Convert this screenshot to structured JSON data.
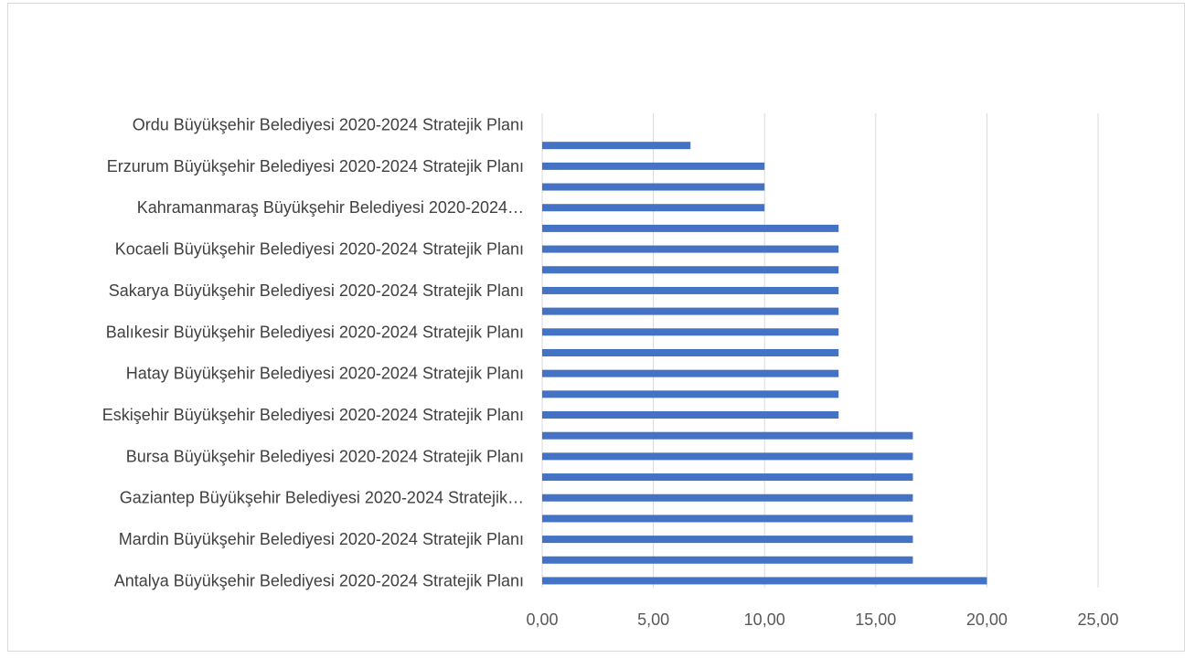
{
  "chart_data": {
    "type": "bar",
    "orientation": "horizontal",
    "title": "",
    "xlabel": "",
    "ylabel": "",
    "xlim": [
      0,
      25
    ],
    "x_ticks": [
      "0,00",
      "5,00",
      "10,00",
      "15,00",
      "20,00",
      "25,00"
    ],
    "x_tick_values": [
      0,
      5,
      10,
      15,
      20,
      25
    ],
    "grid": true,
    "legend": "none",
    "bar_color": "#4472c4",
    "categories_top_to_bottom": [
      {
        "label": "Ordu Büyükşehir Belediyesi 2020-2024 Stratejik Planı",
        "value": null
      },
      {
        "label": "",
        "value": 6.67
      },
      {
        "label": "Erzurum Büyükşehir Belediyesi 2020-2024 Stratejik Planı",
        "value": 10.0
      },
      {
        "label": "",
        "value": 10.0
      },
      {
        "label": "Kahramanmaraş Büyükşehir Belediyesi 2020-2024…",
        "value": 10.0
      },
      {
        "label": "",
        "value": 13.33
      },
      {
        "label": "Kocaeli Büyükşehir Belediyesi 2020-2024 Stratejik Planı",
        "value": 13.33
      },
      {
        "label": "",
        "value": 13.33
      },
      {
        "label": "Sakarya Büyükşehir Belediyesi 2020-2024 Stratejik Planı",
        "value": 13.33
      },
      {
        "label": "",
        "value": 13.33
      },
      {
        "label": "Balıkesir Büyükşehir Belediyesi 2020-2024 Stratejik Planı",
        "value": 13.33
      },
      {
        "label": "",
        "value": 13.33
      },
      {
        "label": "Hatay Büyükşehir Belediyesi 2020-2024 Stratejik Planı",
        "value": 13.33
      },
      {
        "label": "",
        "value": 13.33
      },
      {
        "label": "Eskişehir Büyükşehir Belediyesi 2020-2024 Stratejik Planı",
        "value": 13.33
      },
      {
        "label": "",
        "value": 16.67
      },
      {
        "label": "Bursa Büyükşehir Belediyesi 2020-2024 Stratejik Planı",
        "value": 16.67
      },
      {
        "label": "",
        "value": 16.67
      },
      {
        "label": "Gaziantep Büyükşehir Belediyesi 2020-2024 Stratejik…",
        "value": 16.67
      },
      {
        "label": "",
        "value": 16.67
      },
      {
        "label": "Mardin Büyükşehir Belediyesi 2020-2024 Stratejik Planı",
        "value": 16.67
      },
      {
        "label": "",
        "value": 16.67
      },
      {
        "label": "Antalya Büyükşehir Belediyesi 2020-2024 Stratejik Planı",
        "value": 20.0
      }
    ]
  }
}
